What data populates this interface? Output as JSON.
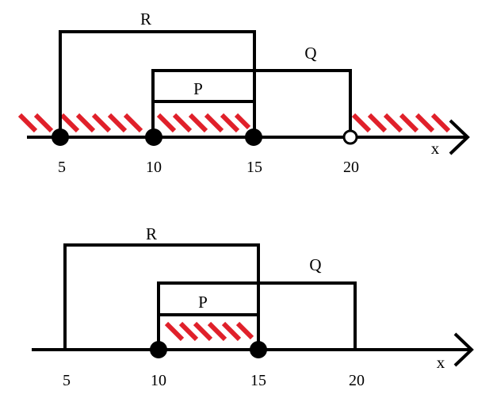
{
  "colors": {
    "ink": "#000000",
    "hatch": "#e0202a",
    "background": "#ffffff"
  },
  "axis_label": "x",
  "top_diagram": {
    "ticks": [
      "5",
      "10",
      "15",
      "20"
    ],
    "interval_labels": {
      "R": "R",
      "Q": "Q",
      "P": "P"
    },
    "endpoints": [
      {
        "value": 5,
        "style": "closed"
      },
      {
        "value": 10,
        "style": "closed"
      },
      {
        "value": 15,
        "style": "closed"
      },
      {
        "value": 20,
        "style": "open"
      }
    ],
    "shaded": [
      {
        "from": "left-edge",
        "to": 15
      },
      {
        "from": 20,
        "to": "right-edge"
      }
    ]
  },
  "bottom_diagram": {
    "ticks": [
      "5",
      "10",
      "15",
      "20"
    ],
    "interval_labels": {
      "R": "R",
      "Q": "Q",
      "P": "P"
    },
    "endpoints": [
      {
        "value": 10,
        "style": "closed"
      },
      {
        "value": 15,
        "style": "closed"
      }
    ],
    "shaded": [
      {
        "from": 10,
        "to": 15
      }
    ]
  }
}
